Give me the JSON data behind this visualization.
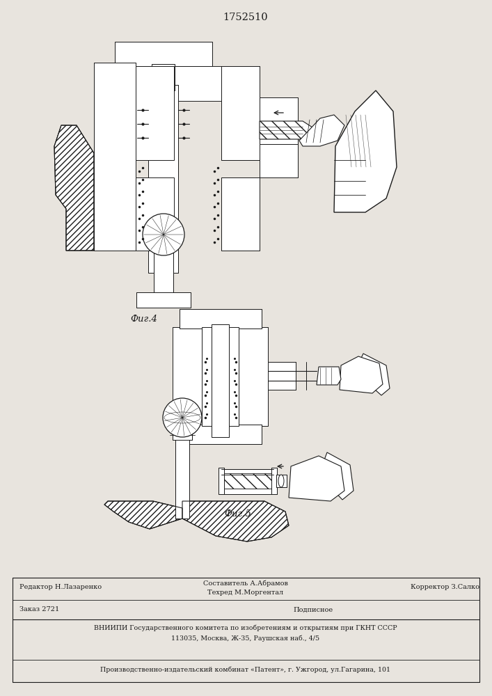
{
  "patent_number": "1752510",
  "fig4_label": "Фиг.4",
  "fig5_label": "Фиг.5",
  "footer_editor": "Редактор Н.Лазаренко",
  "footer_composer": "Составитель А.Абрамов",
  "footer_techred": "Техред М.Моргентал",
  "footer_corrector": "Корректор З.Салко",
  "footer_order": "Заказ 2721",
  "footer_signed": "Подписное",
  "footer_vniipи": "ВНИИПИ Государственного комитета по изобретениям и открытиям при ГКНТ СССР",
  "footer_address": "113035, Москва, Ж-35, Раушская наб., 4/5",
  "footer_publisher": "Производственно-издательский комбинат «Патент», г. Ужгород, ул.Гагарина, 101",
  "bg_color": "#e8e4de",
  "line_color": "#1a1a1a"
}
